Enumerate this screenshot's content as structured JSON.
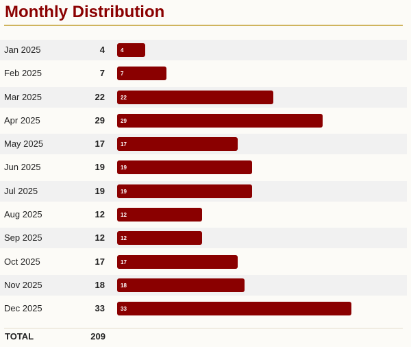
{
  "chart_data": {
    "type": "bar",
    "orientation": "horizontal",
    "title": "Monthly Distribution",
    "categories": [
      "Jan 2025",
      "Feb 2025",
      "Mar 2025",
      "Apr 2025",
      "May 2025",
      "Jun 2025",
      "Jul 2025",
      "Aug 2025",
      "Sep 2025",
      "Oct 2025",
      "Nov 2025",
      "Dec 2025"
    ],
    "values": [
      4,
      7,
      22,
      29,
      17,
      19,
      19,
      12,
      12,
      17,
      18,
      33
    ],
    "total_label": "TOTAL",
    "total_value": "209",
    "bar_color": "#8a0000",
    "accent_rule_color": "#cfb45e",
    "grid": false,
    "legend": false
  }
}
